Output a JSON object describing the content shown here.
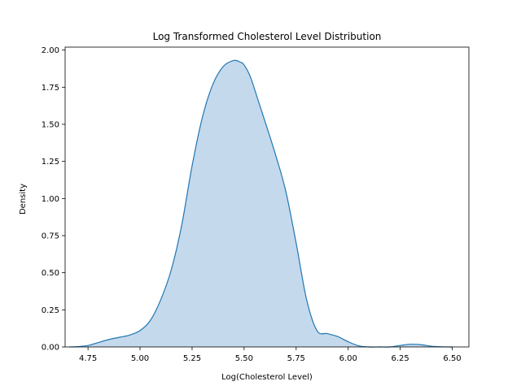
{
  "chart_data": {
    "type": "area",
    "title": "Log Transformed Cholesterol Level Distribution",
    "xlabel": "Log(Cholesterol Level)",
    "ylabel": "Density",
    "xlim": [
      4.64,
      6.58
    ],
    "ylim": [
      0,
      2.02
    ],
    "xticks": [
      "4.75",
      "5.00",
      "5.25",
      "5.50",
      "5.75",
      "6.00",
      "6.25",
      "6.50"
    ],
    "yticks": [
      "0.00",
      "0.25",
      "0.50",
      "0.75",
      "1.00",
      "1.25",
      "1.50",
      "1.75",
      "2.00"
    ],
    "grid": false,
    "legend": "none",
    "series": [
      {
        "x": [
          4.66,
          4.7,
          4.75,
          4.8,
          4.85,
          4.9,
          4.95,
          5.0,
          5.05,
          5.1,
          5.15,
          5.2,
          5.25,
          5.3,
          5.35,
          5.4,
          5.45,
          5.48,
          5.5,
          5.53,
          5.57,
          5.6,
          5.65,
          5.7,
          5.75,
          5.8,
          5.85,
          5.9,
          5.95,
          6.0,
          6.05,
          6.1,
          6.15,
          6.2,
          6.25,
          6.3,
          6.35,
          6.4,
          6.45,
          6.5
        ],
        "y": [
          0.0,
          0.002,
          0.01,
          0.03,
          0.05,
          0.065,
          0.08,
          0.11,
          0.18,
          0.32,
          0.52,
          0.82,
          1.22,
          1.55,
          1.77,
          1.89,
          1.93,
          1.92,
          1.9,
          1.82,
          1.65,
          1.52,
          1.3,
          1.05,
          0.7,
          0.32,
          0.11,
          0.09,
          0.07,
          0.035,
          0.008,
          0.0,
          0.0,
          0.0,
          0.01,
          0.018,
          0.015,
          0.005,
          0.001,
          0.0
        ]
      }
    ],
    "colors": {
      "line": "#1f77b4",
      "fill": "#c5d9ec"
    }
  }
}
